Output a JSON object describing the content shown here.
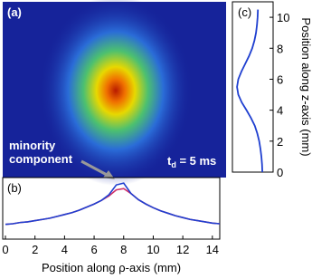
{
  "chart_data": [
    {
      "type": "image",
      "panel_label": "(a)",
      "annotation": [
        "minority",
        "component"
      ],
      "time_label": {
        "main": "t",
        "sub": "d",
        "rest": " = 5 ms"
      }
    },
    {
      "type": "line",
      "panel_label": "(b)",
      "x_label": "Position along ρ-axis (mm)",
      "x": [
        0,
        0.5,
        1,
        1.5,
        2,
        2.5,
        3,
        3.5,
        4,
        4.5,
        5,
        5.5,
        6,
        6.5,
        7,
        7.5,
        8,
        8.5,
        9,
        9.5,
        10,
        10.5,
        11,
        11.5,
        12,
        12.5,
        13,
        13.5,
        14,
        14.5
      ],
      "series": [
        {
          "color": "#d0306a",
          "values": [
            0.24,
            0.25,
            0.27,
            0.28,
            0.3,
            0.32,
            0.34,
            0.37,
            0.4,
            0.43,
            0.47,
            0.52,
            0.57,
            0.63,
            0.7,
            0.8,
            0.82,
            0.74,
            0.64,
            0.57,
            0.51,
            0.46,
            0.42,
            0.38,
            0.35,
            0.32,
            0.3,
            0.28,
            0.26,
            0.25
          ]
        },
        {
          "color": "#1f3fd0",
          "values": [
            0.24,
            0.25,
            0.27,
            0.28,
            0.3,
            0.32,
            0.34,
            0.37,
            0.4,
            0.43,
            0.47,
            0.52,
            0.57,
            0.63,
            0.72,
            0.88,
            0.91,
            0.74,
            0.64,
            0.57,
            0.51,
            0.46,
            0.42,
            0.38,
            0.35,
            0.32,
            0.3,
            0.28,
            0.26,
            0.25
          ]
        }
      ],
      "xlim": [
        0,
        14.5
      ],
      "xticks": [
        0,
        2,
        4,
        6,
        8,
        10,
        12,
        14
      ],
      "ylim": [
        0,
        1
      ]
    },
    {
      "type": "vline",
      "panel_label": "(c)",
      "y_label": "Position along z-axis (mm)",
      "y": [
        0,
        0.5,
        1,
        1.5,
        2,
        2.5,
        3,
        3.5,
        4,
        4.5,
        5,
        5.5,
        6,
        6.5,
        7,
        7.5,
        8,
        8.5,
        9,
        9.5,
        10,
        10.5
      ],
      "series": [
        {
          "color": "#1f3fd0",
          "values": [
            0.14,
            0.15,
            0.17,
            0.2,
            0.24,
            0.3,
            0.38,
            0.5,
            0.64,
            0.79,
            0.9,
            0.94,
            0.9,
            0.8,
            0.68,
            0.56,
            0.46,
            0.39,
            0.34,
            0.31,
            0.29,
            0.28
          ]
        }
      ],
      "ylim": [
        0,
        11
      ],
      "yticks": [
        0,
        2,
        4,
        6,
        8,
        10
      ],
      "xlim": [
        1,
        0
      ]
    }
  ]
}
